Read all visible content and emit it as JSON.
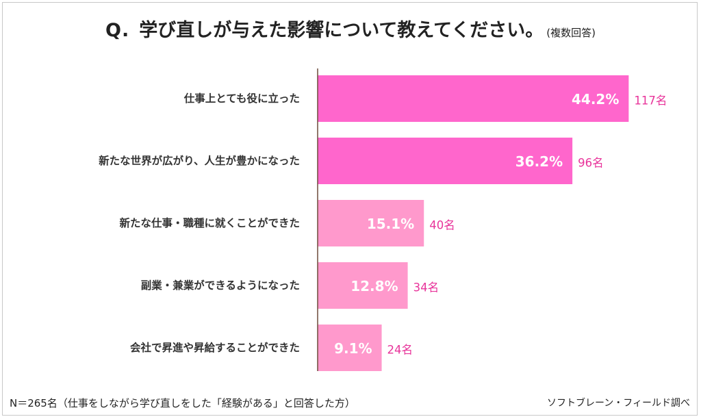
{
  "title": {
    "q": "Q.",
    "main": "学び直しが与えた影響について教えてください。",
    "note": "(複数回答)"
  },
  "footer": {
    "sample": "N＝265名（仕事をしながら学び直しをした「経験がある」と回答した方）",
    "source": "ソフトブレーン・フィールド調べ"
  },
  "colors": {
    "strong": "#ff66cc",
    "light": "#ff99cc",
    "count_text": "#e8339a",
    "axis": "#6b4a3a"
  },
  "chart_data": {
    "type": "bar",
    "orientation": "horizontal",
    "categories": [
      "仕事上とても役に立った",
      "新たな世界が広がり、人生が豊かになった",
      "新たな仕事・職種に就くことができた",
      "副業・兼業ができるようになった",
      "会社で昇進や昇給することができた"
    ],
    "values": [
      44.2,
      36.2,
      15.1,
      12.8,
      9.1
    ],
    "value_labels": [
      "44.2%",
      "36.2%",
      "15.1%",
      "12.8%",
      "9.1%"
    ],
    "counts": [
      "117名",
      "96名",
      "40名",
      "34名",
      "24名"
    ],
    "xlim": [
      0,
      50
    ],
    "grid": false,
    "legend": "none"
  }
}
